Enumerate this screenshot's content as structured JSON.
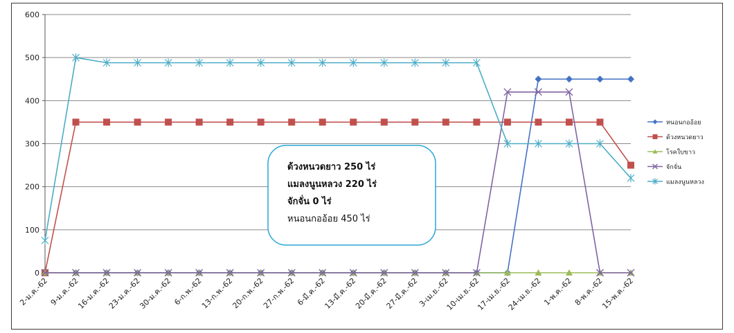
{
  "chart_data": {
    "type": "line",
    "title": "",
    "xlabel": "",
    "ylabel": "",
    "ylim": [
      0,
      600
    ],
    "yticks": [
      0,
      100,
      200,
      300,
      400,
      500,
      600
    ],
    "grid": true,
    "legend_position": "right",
    "categories": [
      "2-ม.ค.-62",
      "9-ม.ค.-62",
      "16-ม.ค.-62",
      "23-ม.ค.-62",
      "30-ม.ค.-62",
      "6-ก.พ.-62",
      "13-ก.พ.-62",
      "20-ก.พ.-62",
      "27-ก.พ.-62",
      "6-มี.ค.-62",
      "13-มี.ค.-62",
      "20-มี.ค.-62",
      "27-มี.ค.-62",
      "3-เม.ย.-62",
      "10-เม.ย.-62",
      "17-เม.ย.-62",
      "24-เม.ย.-62",
      "1-พ.ค.-62",
      "8-พ.ค.-62",
      "15-พ.ค.-62"
    ],
    "series": [
      {
        "name": "หนอนกออ้อย",
        "color": "#4472c4",
        "marker": "diamond",
        "values": [
          0,
          0,
          0,
          0,
          0,
          0,
          0,
          0,
          0,
          0,
          0,
          0,
          0,
          0,
          0,
          0,
          450,
          450,
          450,
          450
        ]
      },
      {
        "name": "ด้วงหนวดยาว",
        "color": "#c0504d",
        "marker": "square",
        "values": [
          0,
          350,
          350,
          350,
          350,
          350,
          350,
          350,
          350,
          350,
          350,
          350,
          350,
          350,
          350,
          350,
          350,
          350,
          350,
          250
        ]
      },
      {
        "name": "โรคใบขาว",
        "color": "#9bbb59",
        "marker": "triangle",
        "values": [
          0,
          0,
          0,
          0,
          0,
          0,
          0,
          0,
          0,
          0,
          0,
          0,
          0,
          0,
          0,
          0,
          0,
          0,
          0,
          0
        ]
      },
      {
        "name": "จักจั่น",
        "color": "#8064a2",
        "marker": "x",
        "values": [
          0,
          0,
          0,
          0,
          0,
          0,
          0,
          0,
          0,
          0,
          0,
          0,
          0,
          0,
          0,
          420,
          420,
          420,
          0,
          0
        ]
      },
      {
        "name": "แมลงนูนหลวง",
        "color": "#4bacc6",
        "marker": "star",
        "values": [
          75,
          500,
          488,
          488,
          488,
          488,
          488,
          488,
          488,
          488,
          488,
          488,
          488,
          488,
          488,
          300,
          300,
          300,
          300,
          220
        ]
      }
    ],
    "annotation": {
      "lines": [
        {
          "text": "ด้วงหนวดยาว 250 ไร่",
          "bold": true
        },
        {
          "text": "แมลงนูนหลวง 220 ไร่",
          "bold": true
        },
        {
          "text": "จักจั่น 0 ไร่",
          "bold": true
        },
        {
          "text": "หนอนกออ้อย 450 ไร่",
          "bold": false
        }
      ]
    }
  }
}
